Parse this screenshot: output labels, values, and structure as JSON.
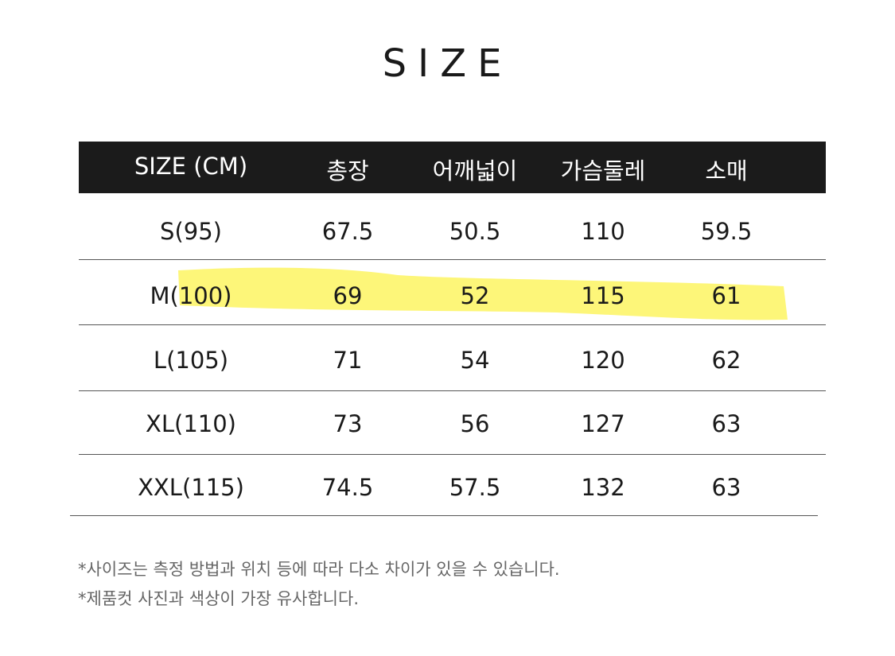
{
  "title": "SIZE",
  "table": {
    "headers": [
      "SIZE (CM)",
      "총장",
      "어깨넓이",
      "가슴둘레",
      "소매"
    ],
    "rows": [
      [
        "S(95)",
        "67.5",
        "50.5",
        "110",
        "59.5"
      ],
      [
        "M(100)",
        "69",
        "52",
        "115",
        "61"
      ],
      [
        "L(105)",
        "71",
        "54",
        "120",
        "62"
      ],
      [
        "XL(110)",
        "73",
        "56",
        "127",
        "63"
      ],
      [
        "XXL(115)",
        "74.5",
        "57.5",
        "132",
        "63"
      ]
    ],
    "highlighted_row": "M(100)",
    "highlight_color": "#fdf56a"
  },
  "notes": [
    "*사이즈는 측정 방법과 위치 등에 따라 다소 차이가 있을 수 있습니다.",
    "*제품컷 사진과 색상이 가장 유사합니다."
  ]
}
